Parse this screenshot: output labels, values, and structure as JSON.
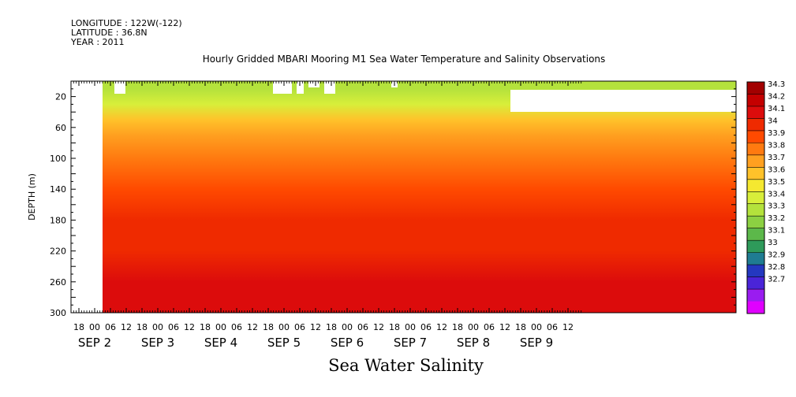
{
  "header": {
    "longitude": "LONGITUDE : 122W(-122)",
    "latitude": "LATITUDE : 36.8N",
    "year": "YEAR : 2011"
  },
  "chart_data": {
    "type": "heatmap",
    "title": "Hourly Gridded MBARI Mooring M1 Sea Water Temperature and Salinity Observations",
    "xlabel": "Sea Water Salinity",
    "ylabel": "DEPTH (m)",
    "y_ticks": [
      20,
      60,
      100,
      140,
      180,
      220,
      260,
      300
    ],
    "ylim": [
      300,
      0
    ],
    "x_hour_ticks": [
      "18",
      "00",
      "06",
      "12",
      "18",
      "00",
      "06",
      "12",
      "18",
      "00",
      "06",
      "12",
      "18",
      "00",
      "06",
      "12",
      "18",
      "00",
      "06",
      "12",
      "18",
      "00",
      "06",
      "12",
      "18",
      "00",
      "06",
      "12",
      "18",
      "00",
      "06",
      "12"
    ],
    "x_day_labels": [
      "SEP 2",
      "SEP 3",
      "SEP 4",
      "SEP 5",
      "SEP 6",
      "SEP 7",
      "SEP 8",
      "SEP 9"
    ],
    "colorbar_levels": [
      34.3,
      34.2,
      34.1,
      34,
      33.9,
      33.8,
      33.7,
      33.6,
      33.5,
      33.4,
      33.3,
      33.2,
      33.1,
      33,
      32.9,
      32.8,
      32.7
    ],
    "colorbar_colors": [
      "#a20000",
      "#c40000",
      "#dc0c0c",
      "#ef2a00",
      "#ff4a00",
      "#ff7a10",
      "#ffa020",
      "#ffc22a",
      "#f5e830",
      "#d8ee3a",
      "#b4e23c",
      "#8cd042",
      "#5cb84a",
      "#2e9a5a",
      "#1f7c92",
      "#2438c0",
      "#4a24d8",
      "#9a1cf0",
      "#e000ff"
    ],
    "depth_profile": [
      {
        "depth": 10,
        "salinity": 33.4
      },
      {
        "depth": 30,
        "salinity": 33.55
      },
      {
        "depth": 50,
        "salinity": 33.7
      },
      {
        "depth": 70,
        "salinity": 33.85
      },
      {
        "depth": 100,
        "salinity": 33.95
      },
      {
        "depth": 140,
        "salinity": 34.05
      },
      {
        "depth": 180,
        "salinity": 34.1
      },
      {
        "depth": 220,
        "salinity": 34.15
      },
      {
        "depth": 260,
        "salinity": 34.25
      },
      {
        "depth": 300,
        "salinity": 34.25
      }
    ]
  }
}
